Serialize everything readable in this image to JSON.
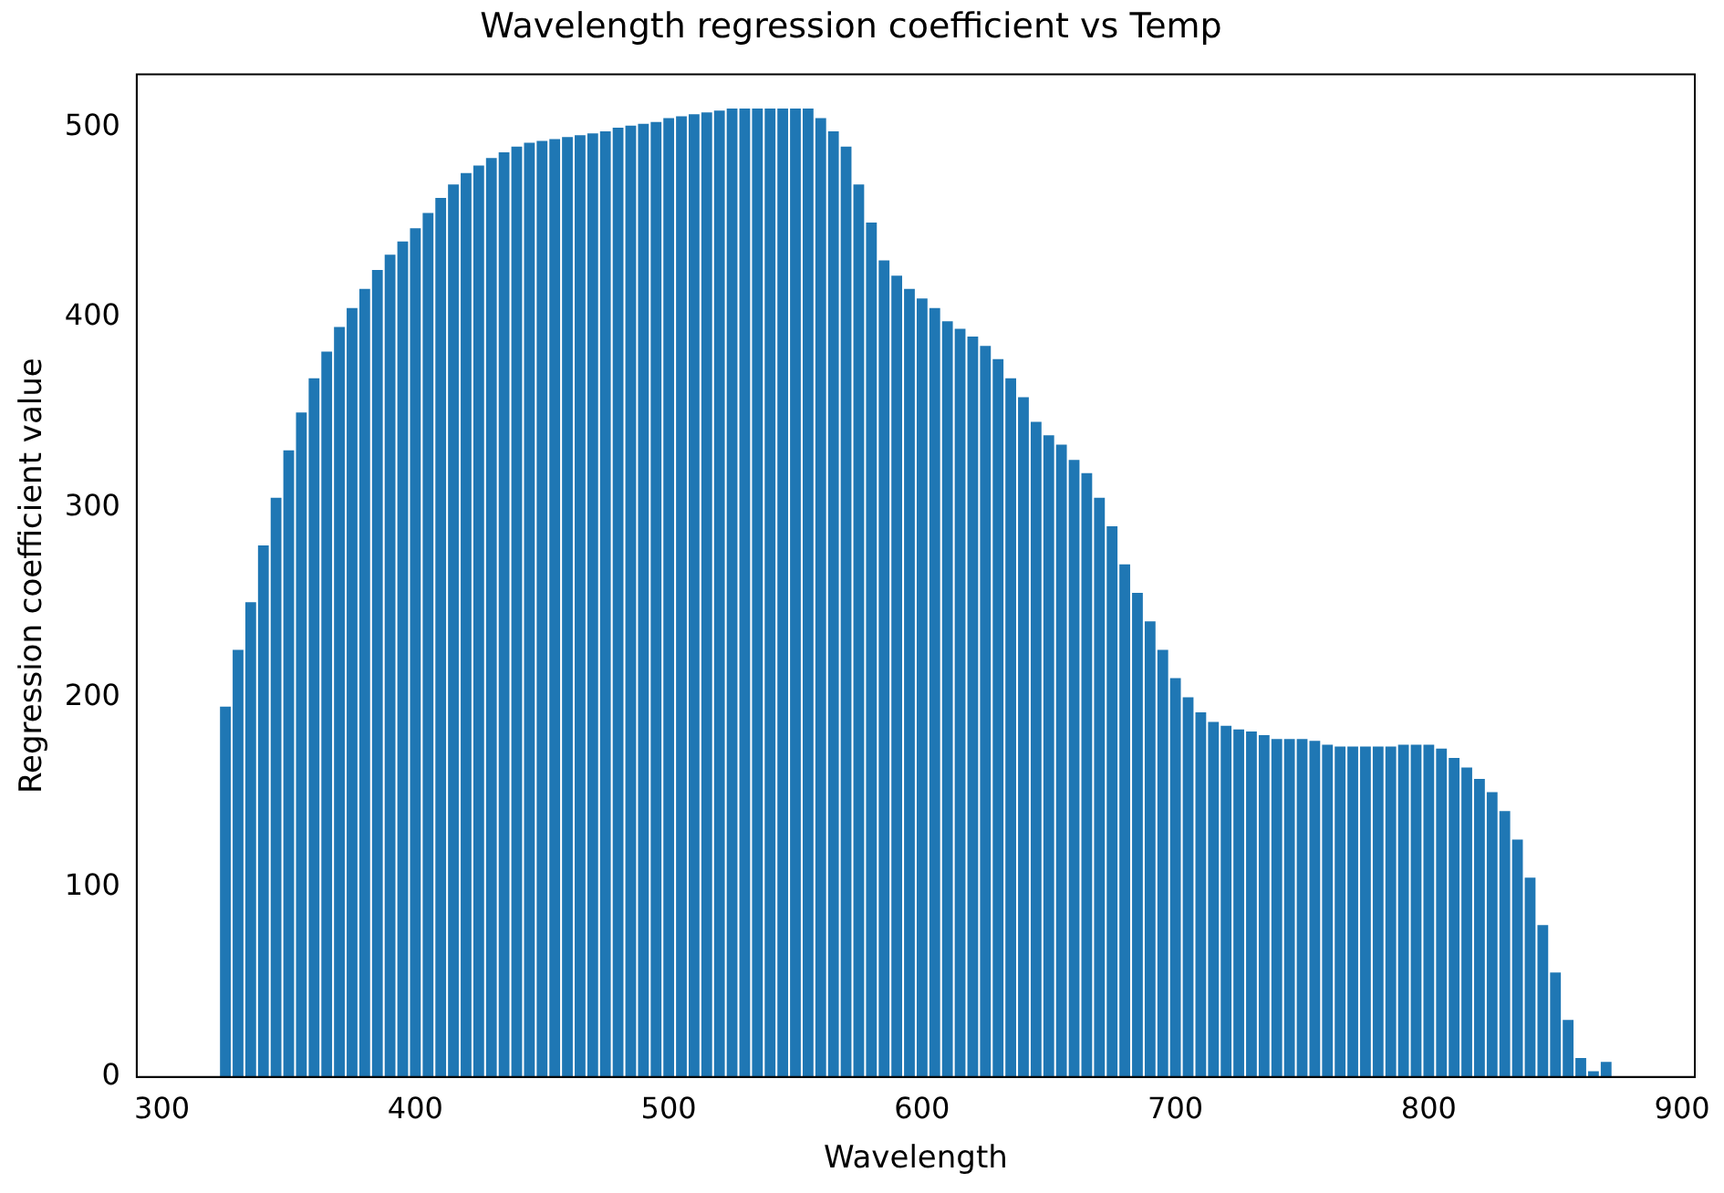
{
  "chart_data": {
    "type": "bar",
    "title": "Wavelength regression coefficient vs Temp",
    "xlabel": "Wavelength",
    "ylabel": "Regression coefficient value",
    "color": "#1f77b4",
    "x": [
      325,
      330,
      335,
      340,
      345,
      350,
      355,
      360,
      365,
      370,
      375,
      380,
      385,
      390,
      395,
      400,
      405,
      410,
      415,
      420,
      425,
      430,
      435,
      440,
      445,
      450,
      455,
      460,
      465,
      470,
      475,
      480,
      485,
      490,
      495,
      500,
      505,
      510,
      515,
      520,
      525,
      530,
      535,
      540,
      545,
      550,
      555,
      560,
      565,
      570,
      575,
      580,
      585,
      590,
      595,
      600,
      605,
      610,
      615,
      620,
      625,
      630,
      635,
      640,
      645,
      650,
      655,
      660,
      665,
      670,
      675,
      680,
      685,
      690,
      695,
      700,
      705,
      710,
      715,
      720,
      725,
      730,
      735,
      740,
      745,
      750,
      755,
      760,
      765,
      770,
      775,
      780,
      785,
      790,
      795,
      800,
      805,
      810,
      815,
      820,
      825,
      830,
      835,
      840,
      845,
      850,
      855,
      860,
      865,
      870
    ],
    "values": [
      195,
      225,
      250,
      280,
      305,
      330,
      350,
      368,
      382,
      395,
      405,
      415,
      425,
      433,
      440,
      447,
      455,
      463,
      470,
      476,
      480,
      484,
      487,
      490,
      492,
      493,
      494,
      495,
      496,
      497,
      498,
      500,
      501,
      502,
      503,
      505,
      506,
      507,
      508,
      509,
      510,
      510,
      510,
      510,
      510,
      510,
      510,
      505,
      498,
      490,
      470,
      450,
      430,
      422,
      415,
      410,
      405,
      398,
      394,
      390,
      385,
      378,
      368,
      358,
      345,
      338,
      333,
      325,
      318,
      305,
      290,
      270,
      255,
      240,
      225,
      210,
      200,
      192,
      187,
      185,
      183,
      182,
      180,
      178,
      178,
      178,
      177,
      175,
      174,
      174,
      174,
      174,
      174,
      175,
      175,
      175,
      173,
      168,
      163,
      157,
      150,
      140,
      125,
      105,
      80,
      55,
      30,
      10,
      3,
      8
    ],
    "xlim": [
      290,
      905
    ],
    "ylim": [
      0,
      528
    ],
    "xticks": [
      300,
      400,
      500,
      600,
      700,
      800,
      900
    ],
    "yticks": [
      0,
      100,
      200,
      300,
      400,
      500
    ],
    "grid": false
  }
}
